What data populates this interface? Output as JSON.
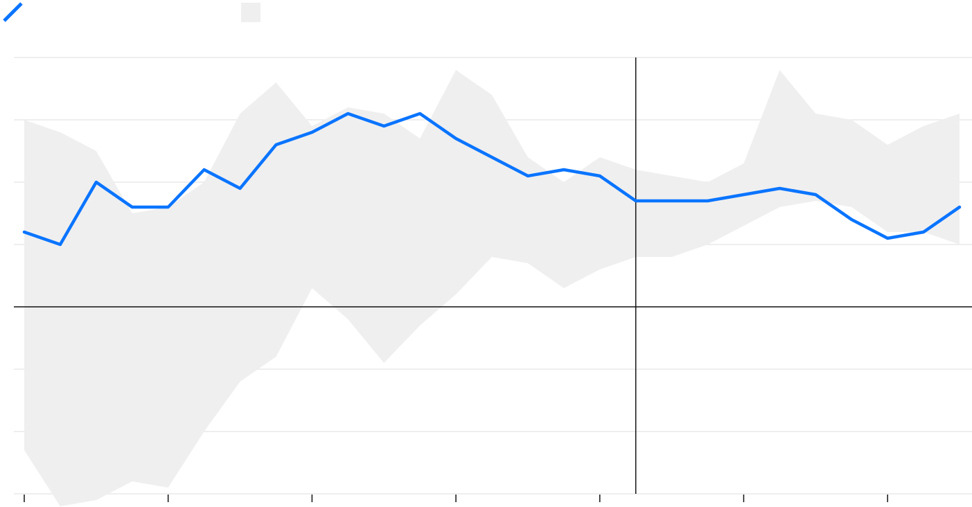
{
  "chart_data": {
    "type": "line",
    "title": "",
    "xlabel": "",
    "ylabel": "",
    "x": [
      0,
      1,
      2,
      3,
      4,
      5,
      6,
      7,
      8,
      9,
      10,
      11,
      12,
      13,
      14,
      15,
      16,
      17,
      18,
      19,
      20,
      21,
      22,
      23,
      24,
      25,
      26
    ],
    "xlim": [
      0,
      26
    ],
    "ylim": [
      -3,
      4
    ],
    "x_ticks": [
      0,
      4,
      8,
      12,
      16,
      20,
      24
    ],
    "y_gridlines": [
      4,
      3,
      2,
      1,
      0,
      -1,
      -2,
      -3
    ],
    "grid": true,
    "zero_line": 0,
    "vertical_marker_x": 17,
    "legend": "top-left",
    "series": [
      {
        "kind": "line",
        "color": "#0a74ff",
        "values": [
          1.2,
          1.0,
          2.0,
          1.6,
          1.6,
          2.2,
          1.9,
          2.6,
          2.8,
          3.1,
          2.9,
          3.1,
          2.7,
          2.4,
          2.1,
          2.2,
          2.1,
          1.7,
          1.7,
          1.7,
          1.8,
          1.9,
          1.8,
          1.4,
          1.1,
          1.2,
          1.6
        ]
      },
      {
        "kind": "band",
        "color": "#efefef",
        "upper": [
          3.0,
          2.8,
          2.5,
          1.5,
          1.6,
          2.0,
          3.1,
          3.6,
          2.9,
          3.2,
          3.1,
          2.7,
          3.8,
          3.4,
          2.4,
          2.0,
          2.4,
          2.2,
          2.1,
          2.0,
          2.3,
          3.8,
          3.1,
          3.0,
          2.6,
          2.9,
          3.1
        ],
        "lower": [
          -2.3,
          -3.2,
          -3.1,
          -2.8,
          -2.9,
          -2.0,
          -1.2,
          -0.8,
          0.3,
          -0.2,
          -0.9,
          -0.3,
          0.2,
          0.8,
          0.7,
          0.3,
          0.6,
          0.8,
          0.8,
          1.0,
          1.3,
          1.6,
          1.7,
          1.6,
          1.2,
          1.2,
          1.0
        ]
      }
    ]
  }
}
